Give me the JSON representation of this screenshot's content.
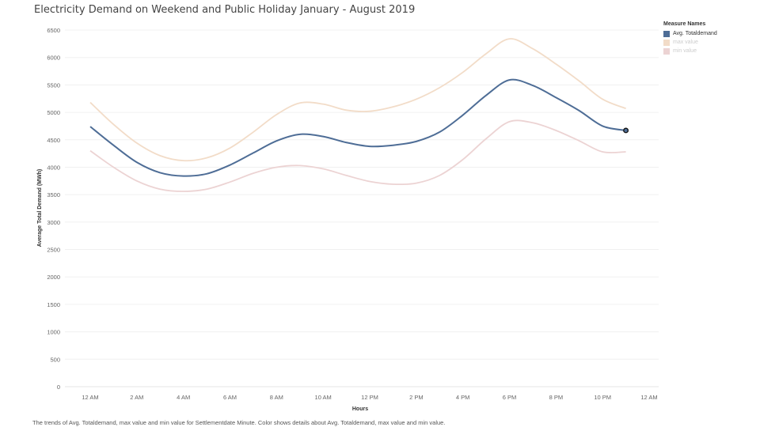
{
  "chart_data": {
    "type": "line",
    "title": "Electricity Demand on Weekend and Public Holiday January - August 2019",
    "xlabel": "Hours",
    "ylabel": "Average Total Demand (MWh)",
    "ylim": [
      0,
      6500
    ],
    "yticks": [
      0,
      500,
      1000,
      1500,
      2000,
      2500,
      3000,
      3500,
      4000,
      4500,
      5000,
      5500,
      6000,
      6500
    ],
    "xticks": [
      {
        "hour": 0,
        "label": "12 AM"
      },
      {
        "hour": 2,
        "label": "2 AM"
      },
      {
        "hour": 4,
        "label": "4 AM"
      },
      {
        "hour": 6,
        "label": "6 AM"
      },
      {
        "hour": 8,
        "label": "8 AM"
      },
      {
        "hour": 10,
        "label": "10 AM"
      },
      {
        "hour": 12,
        "label": "12 PM"
      },
      {
        "hour": 14,
        "label": "2 PM"
      },
      {
        "hour": 16,
        "label": "4 PM"
      },
      {
        "hour": 18,
        "label": "6 PM"
      },
      {
        "hour": 20,
        "label": "8 PM"
      },
      {
        "hour": 22,
        "label": "10 PM"
      },
      {
        "hour": 24,
        "label": "12 AM"
      }
    ],
    "x": [
      0,
      1,
      2,
      3,
      4,
      5,
      6,
      7,
      8,
      9,
      10,
      11,
      12,
      13,
      14,
      15,
      16,
      17,
      18,
      19,
      20,
      21,
      22,
      23
    ],
    "grid": true,
    "legend_title": "Measure Names",
    "legend_position": "top-right",
    "series": [
      {
        "name": "max value",
        "color": "#f2dcc8",
        "values": [
          5180,
          4780,
          4440,
          4210,
          4120,
          4170,
          4350,
          4640,
          4960,
          5170,
          5150,
          5040,
          5020,
          5100,
          5240,
          5450,
          5730,
          6070,
          6340,
          6160,
          5880,
          5570,
          5240,
          5070
        ]
      },
      {
        "name": "min value",
        "color": "#ecd3d3",
        "values": [
          4300,
          4000,
          3750,
          3600,
          3560,
          3600,
          3730,
          3890,
          4000,
          4030,
          3970,
          3850,
          3740,
          3690,
          3710,
          3850,
          4140,
          4520,
          4830,
          4810,
          4670,
          4480,
          4280,
          4280
        ]
      },
      {
        "name": "Avg. Totaldemand",
        "color": "#4e6d96",
        "values": [
          4740,
          4400,
          4090,
          3900,
          3840,
          3880,
          4040,
          4260,
          4480,
          4600,
          4560,
          4450,
          4380,
          4400,
          4470,
          4640,
          4950,
          5310,
          5590,
          5490,
          5270,
          5030,
          4750,
          4670
        ]
      }
    ]
  },
  "footer": "The trends of Avg. Totaldemand, max value and min value for Settlementdate Minute.  Color shows details about Avg. Totaldemand, max value and min value."
}
